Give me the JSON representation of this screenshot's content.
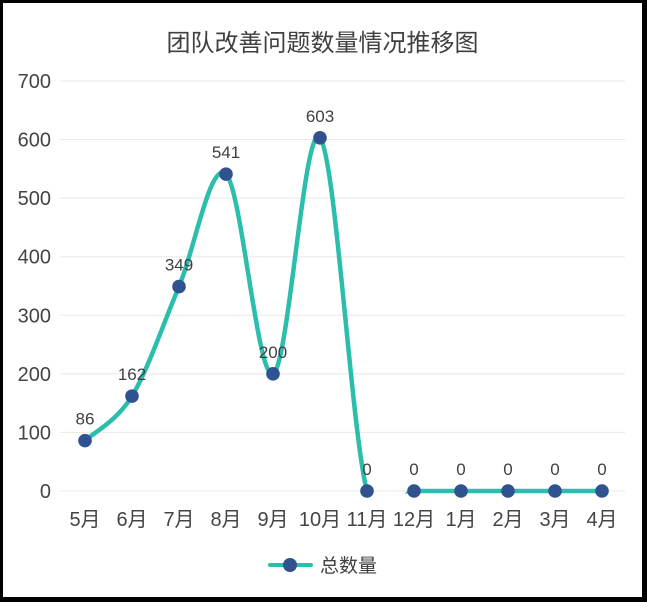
{
  "title": "团队改善问题数量情况推移图",
  "legend": {
    "label": "总数量"
  },
  "colors": {
    "line": "#2BBEAD",
    "marker": "#30528F",
    "text": "#404040",
    "axis_text": "#444444",
    "grid": "#E8E8E8",
    "frame": "#000000",
    "background": "#FFFFFF"
  },
  "chart_data": {
    "type": "line",
    "smooth": true,
    "title": "团队改善问题数量情况推移图",
    "categories": [
      "5月",
      "6月",
      "7月",
      "8月",
      "9月",
      "10月",
      "11月",
      "12月",
      "1月",
      "2月",
      "3月",
      "4月"
    ],
    "series": [
      {
        "name": "总数量",
        "values": [
          86,
          162,
          349,
          541,
          200,
          603,
          0,
          0,
          0,
          0,
          0,
          0
        ]
      }
    ],
    "xlabel": "",
    "ylabel": "",
    "ylim": [
      0,
      700
    ],
    "ytick_interval": 100,
    "grid": "horizontal",
    "legend_position": "bottom",
    "data_labels": true
  }
}
